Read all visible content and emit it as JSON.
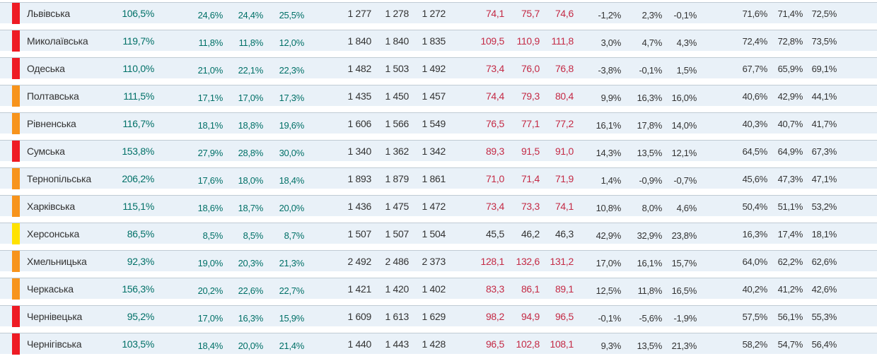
{
  "colors": {
    "row_background": "#e9f1f8",
    "row_top_border": "#c0cbd4",
    "value_teal": "#007067",
    "value_red": "#c42a45",
    "value_dark": "#333333",
    "marker_red": "#ee1b24",
    "marker_orange": "#f7941d",
    "marker_yellow": "#ffe200"
  },
  "table": {
    "rows": [
      {
        "region": "Львівська",
        "marker": "red",
        "v1": "106,5%",
        "v2": [
          "24,6%",
          "24,4%",
          "25,5%"
        ],
        "v3": [
          "1 277",
          "1 278",
          "1 272"
        ],
        "v4": [
          "74,1",
          "75,7",
          "74,6"
        ],
        "v4_color": "red",
        "v5": [
          "-1,2%",
          "2,3%",
          "-0,1%"
        ],
        "v6": [
          "71,6%",
          "71,4%",
          "72,5%"
        ]
      },
      {
        "region": "Миколаївська",
        "marker": "red",
        "v1": "119,7%",
        "v2": [
          "11,8%",
          "11,8%",
          "12,0%"
        ],
        "v3": [
          "1 840",
          "1 840",
          "1 835"
        ],
        "v4": [
          "109,5",
          "110,9",
          "111,8"
        ],
        "v4_color": "red",
        "v5": [
          "3,0%",
          "4,7%",
          "4,3%"
        ],
        "v6": [
          "72,4%",
          "72,8%",
          "73,5%"
        ]
      },
      {
        "region": "Одеська",
        "marker": "red",
        "v1": "110,0%",
        "v2": [
          "21,0%",
          "22,1%",
          "22,3%"
        ],
        "v3": [
          "1 482",
          "1 503",
          "1 492"
        ],
        "v4": [
          "73,4",
          "76,0",
          "76,8"
        ],
        "v4_color": "red",
        "v5": [
          "-3,8%",
          "-0,1%",
          "1,5%"
        ],
        "v6": [
          "67,7%",
          "65,9%",
          "69,1%"
        ]
      },
      {
        "region": "Полтавська",
        "marker": "orange",
        "v1": "111,5%",
        "v2": [
          "17,1%",
          "17,0%",
          "17,3%"
        ],
        "v3": [
          "1 435",
          "1 450",
          "1 457"
        ],
        "v4": [
          "74,4",
          "79,3",
          "80,4"
        ],
        "v4_color": "red",
        "v5": [
          "9,9%",
          "16,3%",
          "16,0%"
        ],
        "v6": [
          "40,6%",
          "42,9%",
          "44,1%"
        ]
      },
      {
        "region": "Рівненська",
        "marker": "orange",
        "v1": "116,7%",
        "v2": [
          "18,1%",
          "18,8%",
          "19,6%"
        ],
        "v3": [
          "1 606",
          "1 566",
          "1 549"
        ],
        "v4": [
          "76,5",
          "77,1",
          "77,2"
        ],
        "v4_color": "red",
        "v5": [
          "16,1%",
          "17,8%",
          "14,0%"
        ],
        "v6": [
          "40,3%",
          "40,7%",
          "41,7%"
        ]
      },
      {
        "region": "Сумська",
        "marker": "red",
        "v1": "153,8%",
        "v2": [
          "27,9%",
          "28,8%",
          "30,0%"
        ],
        "v3": [
          "1 340",
          "1 362",
          "1 342"
        ],
        "v4": [
          "89,3",
          "91,5",
          "91,0"
        ],
        "v4_color": "red",
        "v5": [
          "14,3%",
          "13,5%",
          "12,1%"
        ],
        "v6": [
          "64,5%",
          "64,9%",
          "67,3%"
        ]
      },
      {
        "region": "Тернопільська",
        "marker": "orange",
        "v1": "206,2%",
        "v2": [
          "17,6%",
          "18,0%",
          "18,4%"
        ],
        "v3": [
          "1 893",
          "1 879",
          "1 861"
        ],
        "v4": [
          "71,0",
          "71,4",
          "71,9"
        ],
        "v4_color": "red",
        "v5": [
          "1,4%",
          "-0,9%",
          "-0,7%"
        ],
        "v6": [
          "45,6%",
          "47,3%",
          "47,1%"
        ]
      },
      {
        "region": "Харківська",
        "marker": "orange",
        "v1": "115,1%",
        "v2": [
          "18,6%",
          "18,7%",
          "20,0%"
        ],
        "v3": [
          "1 436",
          "1 475",
          "1 472"
        ],
        "v4": [
          "73,4",
          "73,3",
          "74,1"
        ],
        "v4_color": "red",
        "v5": [
          "10,8%",
          "8,0%",
          "4,6%"
        ],
        "v6": [
          "50,4%",
          "51,1%",
          "53,2%"
        ]
      },
      {
        "region": "Херсонська",
        "marker": "yellow",
        "v1": "86,5%",
        "v2": [
          "8,5%",
          "8,5%",
          "8,7%"
        ],
        "v3": [
          "1 507",
          "1 507",
          "1 504"
        ],
        "v4": [
          "45,5",
          "46,2",
          "46,3"
        ],
        "v4_color": "dark",
        "v5": [
          "42,9%",
          "32,9%",
          "23,8%"
        ],
        "v6": [
          "16,3%",
          "17,4%",
          "18,1%"
        ]
      },
      {
        "region": "Хмельницька",
        "marker": "orange",
        "v1": "92,3%",
        "v2": [
          "19,0%",
          "20,3%",
          "21,3%"
        ],
        "v3": [
          "2 492",
          "2 486",
          "2 373"
        ],
        "v4": [
          "128,1",
          "132,6",
          "131,2"
        ],
        "v4_color": "red",
        "v5": [
          "17,0%",
          "16,1%",
          "15,7%"
        ],
        "v6": [
          "64,0%",
          "62,2%",
          "62,6%"
        ]
      },
      {
        "region": "Черкаська",
        "marker": "orange",
        "v1": "156,3%",
        "v2": [
          "20,2%",
          "22,6%",
          "22,7%"
        ],
        "v3": [
          "1 421",
          "1 420",
          "1 402"
        ],
        "v4": [
          "83,3",
          "86,1",
          "89,1"
        ],
        "v4_color": "red",
        "v5": [
          "12,5%",
          "11,8%",
          "16,5%"
        ],
        "v6": [
          "40,2%",
          "41,2%",
          "42,6%"
        ]
      },
      {
        "region": "Чернівецька",
        "marker": "red",
        "v1": "95,2%",
        "v2": [
          "17,0%",
          "16,3%",
          "15,9%"
        ],
        "v3": [
          "1 609",
          "1 613",
          "1 629"
        ],
        "v4": [
          "98,2",
          "94,9",
          "96,5"
        ],
        "v4_color": "red",
        "v5": [
          "-0,1%",
          "-5,6%",
          "-1,9%"
        ],
        "v6": [
          "57,5%",
          "56,1%",
          "55,3%"
        ]
      },
      {
        "region": "Чернігівська",
        "marker": "red",
        "v1": "103,5%",
        "v2": [
          "18,4%",
          "20,0%",
          "21,4%"
        ],
        "v3": [
          "1 440",
          "1 443",
          "1 428"
        ],
        "v4": [
          "96,5",
          "102,8",
          "108,1"
        ],
        "v4_color": "red",
        "v5": [
          "9,3%",
          "13,5%",
          "21,3%"
        ],
        "v6": [
          "58,2%",
          "54,7%",
          "56,4%"
        ]
      }
    ]
  }
}
